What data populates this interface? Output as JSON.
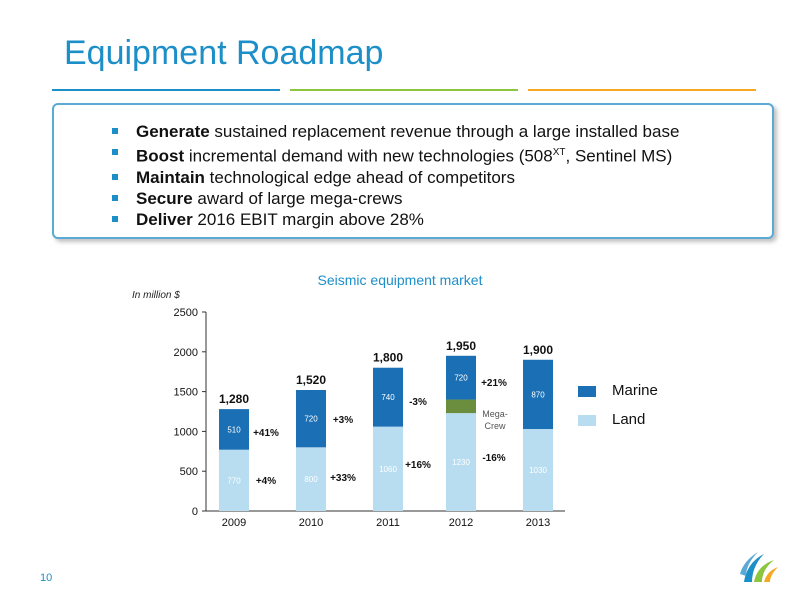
{
  "slide": {
    "title": "Equipment Roadmap",
    "page_number": "10",
    "accent_colors": [
      "#1c8fc8",
      "#8cc63f",
      "#f7a823"
    ]
  },
  "bullets": [
    {
      "bold": "Generate",
      "text": " sustained replacement revenue through a large installed base"
    },
    {
      "bold": "Boost",
      "text": " incremental demand with new technologies (508",
      "sup": "XT",
      "text2": ", Sentinel MS)"
    },
    {
      "bold": "Maintain",
      "text": " technological edge ahead of competitors"
    },
    {
      "bold": "Secure",
      "text": " award of large mega-crews"
    },
    {
      "bold": "Deliver",
      "text": " 2016 EBIT margin above 28%"
    }
  ],
  "chart_data": {
    "type": "bar",
    "stacked": true,
    "title": "Seismic equipment market",
    "ylabel": "In million $",
    "ylim": [
      0,
      2500
    ],
    "yticks": [
      0,
      500,
      1000,
      1500,
      2000,
      2500
    ],
    "categories": [
      "2009",
      "2010",
      "2011",
      "2012",
      "2013"
    ],
    "series": [
      {
        "name": "Land",
        "color": "#b8dcf0",
        "values": [
          770,
          800,
          1060,
          1230,
          1030
        ]
      },
      {
        "name": "Mega-Crew",
        "color": "#6b8e3e",
        "values": [
          0,
          0,
          0,
          0,
          0
        ]
      },
      {
        "name": "Marine",
        "color": "#1a6fb5",
        "values": [
          510,
          720,
          740,
          720,
          870
        ]
      }
    ],
    "totals": [
      "1,280",
      "1,520",
      "1,800",
      "1,950",
      "1,900"
    ],
    "land_labels": [
      "770",
      "800",
      "1060",
      "1230",
      "1030"
    ],
    "marine_labels": [
      "510",
      "720",
      "740",
      "720",
      "870"
    ],
    "land_growth": [
      "+4%",
      "+33%",
      "+16%",
      "-16%"
    ],
    "marine_growth": [
      "+41%",
      "+3%",
      "-3%",
      "+21%"
    ],
    "megacrew_label": "Mega-\nCrew",
    "megacrew_band": [
      1230,
      1400
    ],
    "legend": [
      {
        "label": "Marine",
        "color": "#1a6fb5"
      },
      {
        "label": "Land",
        "color": "#b8dcf0"
      }
    ],
    "legend_position": "right"
  }
}
